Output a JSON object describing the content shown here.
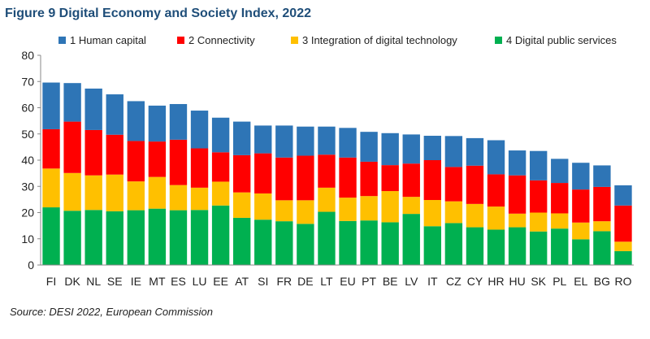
{
  "title": "Figure 9 Digital Economy and Society Index, 2022",
  "source": "Source: DESI 2022, European Commission",
  "chart_data": {
    "type": "bar",
    "stacked": true,
    "categories": [
      "FI",
      "DK",
      "NL",
      "SE",
      "IE",
      "MT",
      "ES",
      "LU",
      "EE",
      "AT",
      "SI",
      "FR",
      "DE",
      "LT",
      "EU",
      "PT",
      "BE",
      "LV",
      "IT",
      "CZ",
      "CY",
      "HR",
      "HU",
      "SK",
      "PL",
      "EL",
      "BG",
      "RO"
    ],
    "series": [
      {
        "name": "4 Digital public services",
        "color": "#00b050",
        "values": [
          22,
          20.7,
          21,
          20.5,
          20.9,
          21.5,
          20.9,
          21,
          22.7,
          18,
          17.3,
          16.7,
          15.7,
          20.3,
          16.8,
          17,
          16.3,
          19.5,
          14.8,
          16,
          14.4,
          13.5,
          14.4,
          12.8,
          13.9,
          9.8,
          12.9,
          5.3
        ]
      },
      {
        "name": "3 Integration of digital technology",
        "color": "#ffc000",
        "values": [
          14.8,
          14.4,
          13.2,
          14,
          11,
          12.1,
          9.6,
          8.5,
          9.1,
          9.7,
          10,
          8,
          9,
          9.2,
          8.9,
          9.3,
          11.9,
          6.5,
          10,
          8.3,
          8.9,
          8.8,
          5.2,
          7.2,
          5.8,
          6.4,
          3.8,
          3.6
        ]
      },
      {
        "name": "2 Connectivity",
        "color": "#ff0000",
        "values": [
          15,
          19.6,
          17.3,
          15.2,
          15.4,
          13.5,
          17.3,
          15,
          11.2,
          14.2,
          15.3,
          16.3,
          17,
          12.6,
          15.3,
          13.1,
          9.9,
          12.7,
          15.2,
          13.1,
          14.6,
          12.3,
          14.6,
          12.3,
          11.6,
          12.6,
          13.1,
          13.8
        ]
      },
      {
        "name": "1 Human capital",
        "color": "#2e75b6",
        "values": [
          17.8,
          14.7,
          15.8,
          15.4,
          15.2,
          13.7,
          13.6,
          14.4,
          13.2,
          12.8,
          10.6,
          12.2,
          11.1,
          10.7,
          11.3,
          11.4,
          12.2,
          11.1,
          9.3,
          11.8,
          10.5,
          13,
          9.5,
          11.2,
          9.2,
          10.2,
          8.2,
          7.7
        ]
      }
    ],
    "legend_order": [
      "1 Human capital",
      "2 Connectivity",
      "3 Integration of digital technology",
      "4 Digital public services"
    ],
    "ylim": [
      0,
      80
    ],
    "yticks": [
      0,
      10,
      20,
      30,
      40,
      50,
      60,
      70,
      80
    ],
    "grid": false,
    "legend_position": "top",
    "xlabel": "",
    "ylabel": ""
  }
}
